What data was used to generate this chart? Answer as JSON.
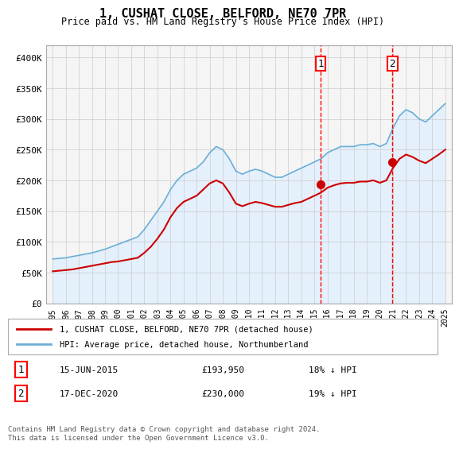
{
  "title": "1, CUSHAT CLOSE, BELFORD, NE70 7PR",
  "subtitle": "Price paid vs. HM Land Registry's House Price Index (HPI)",
  "ylabel_prefix": "£",
  "background_color": "#ffffff",
  "plot_bg_color": "#f5f5f5",
  "hpi_color": "#6baed6",
  "price_color": "#cc0000",
  "hpi_fill_color": "#ddeeff",
  "sale1_x": 2015.46,
  "sale1_y": 193950,
  "sale2_x": 2020.96,
  "sale2_y": 230000,
  "sale1_label": "15-JUN-2015",
  "sale2_label": "17-DEC-2020",
  "sale1_price": "£193,950",
  "sale2_price": "£230,000",
  "sale1_note": "18% ↓ HPI",
  "sale2_note": "19% ↓ HPI",
  "legend_line1": "1, CUSHAT CLOSE, BELFORD, NE70 7PR (detached house)",
  "legend_line2": "HPI: Average price, detached house, Northumberland",
  "footnote": "Contains HM Land Registry data © Crown copyright and database right 2024.\nThis data is licensed under the Open Government Licence v3.0.",
  "xlim": [
    1994.5,
    2025.5
  ],
  "ylim": [
    0,
    420000
  ],
  "yticks": [
    0,
    50000,
    100000,
    150000,
    200000,
    250000,
    300000,
    350000,
    400000
  ],
  "ytick_labels": [
    "£0",
    "£50K",
    "£100K",
    "£150K",
    "£200K",
    "£250K",
    "£300K",
    "£350K",
    "£400K"
  ],
  "hpi_data_x": [
    1995,
    1995.5,
    1996,
    1996.5,
    1997,
    1997.5,
    1998,
    1998.5,
    1999,
    1999.5,
    2000,
    2000.5,
    2001,
    2001.5,
    2002,
    2002.5,
    2003,
    2003.5,
    2004,
    2004.5,
    2005,
    2005.5,
    2006,
    2006.5,
    2007,
    2007.5,
    2008,
    2008.5,
    2009,
    2009.5,
    2010,
    2010.5,
    2011,
    2011.5,
    2012,
    2012.5,
    2013,
    2013.5,
    2014,
    2014.5,
    2015,
    2015.5,
    2016,
    2016.5,
    2017,
    2017.5,
    2018,
    2018.5,
    2019,
    2019.5,
    2020,
    2020.5,
    2021,
    2021.5,
    2022,
    2022.5,
    2023,
    2023.5,
    2024,
    2024.5,
    2025
  ],
  "hpi_data_y": [
    72000,
    73000,
    74000,
    76000,
    78000,
    80000,
    82000,
    85000,
    88000,
    92000,
    96000,
    100000,
    104000,
    108000,
    120000,
    135000,
    150000,
    165000,
    185000,
    200000,
    210000,
    215000,
    220000,
    230000,
    245000,
    255000,
    250000,
    235000,
    215000,
    210000,
    215000,
    218000,
    215000,
    210000,
    205000,
    205000,
    210000,
    215000,
    220000,
    225000,
    230000,
    235000,
    245000,
    250000,
    255000,
    255000,
    255000,
    258000,
    258000,
    260000,
    255000,
    260000,
    285000,
    305000,
    315000,
    310000,
    300000,
    295000,
    305000,
    315000,
    325000
  ],
  "price_data_x": [
    1995,
    1995.5,
    1996,
    1996.5,
    1997,
    1997.5,
    1998,
    1998.5,
    1999,
    1999.5,
    2000,
    2000.5,
    2001,
    2001.5,
    2002,
    2002.5,
    2003,
    2003.5,
    2004,
    2004.5,
    2005,
    2005.5,
    2006,
    2006.5,
    2007,
    2007.5,
    2008,
    2008.5,
    2009,
    2009.5,
    2010,
    2010.5,
    2011,
    2011.5,
    2012,
    2012.5,
    2013,
    2013.5,
    2014,
    2014.5,
    2015,
    2015.5,
    2016,
    2016.5,
    2017,
    2017.5,
    2018,
    2018.5,
    2019,
    2019.5,
    2020,
    2020.5,
    2021,
    2021.5,
    2022,
    2022.5,
    2023,
    2023.5,
    2024,
    2024.5,
    2025
  ],
  "price_data_y": [
    52000,
    53000,
    54000,
    55000,
    57000,
    59000,
    61000,
    63000,
    65000,
    67000,
    68000,
    70000,
    72000,
    74000,
    82000,
    92000,
    105000,
    120000,
    140000,
    155000,
    165000,
    170000,
    175000,
    185000,
    195000,
    200000,
    195000,
    180000,
    162000,
    158000,
    162000,
    165000,
    163000,
    160000,
    157000,
    157000,
    160000,
    163000,
    165000,
    170000,
    175000,
    180000,
    188000,
    192000,
    195000,
    196000,
    196000,
    198000,
    198000,
    200000,
    196000,
    200000,
    220000,
    235000,
    242000,
    238000,
    232000,
    228000,
    235000,
    242000,
    250000
  ]
}
